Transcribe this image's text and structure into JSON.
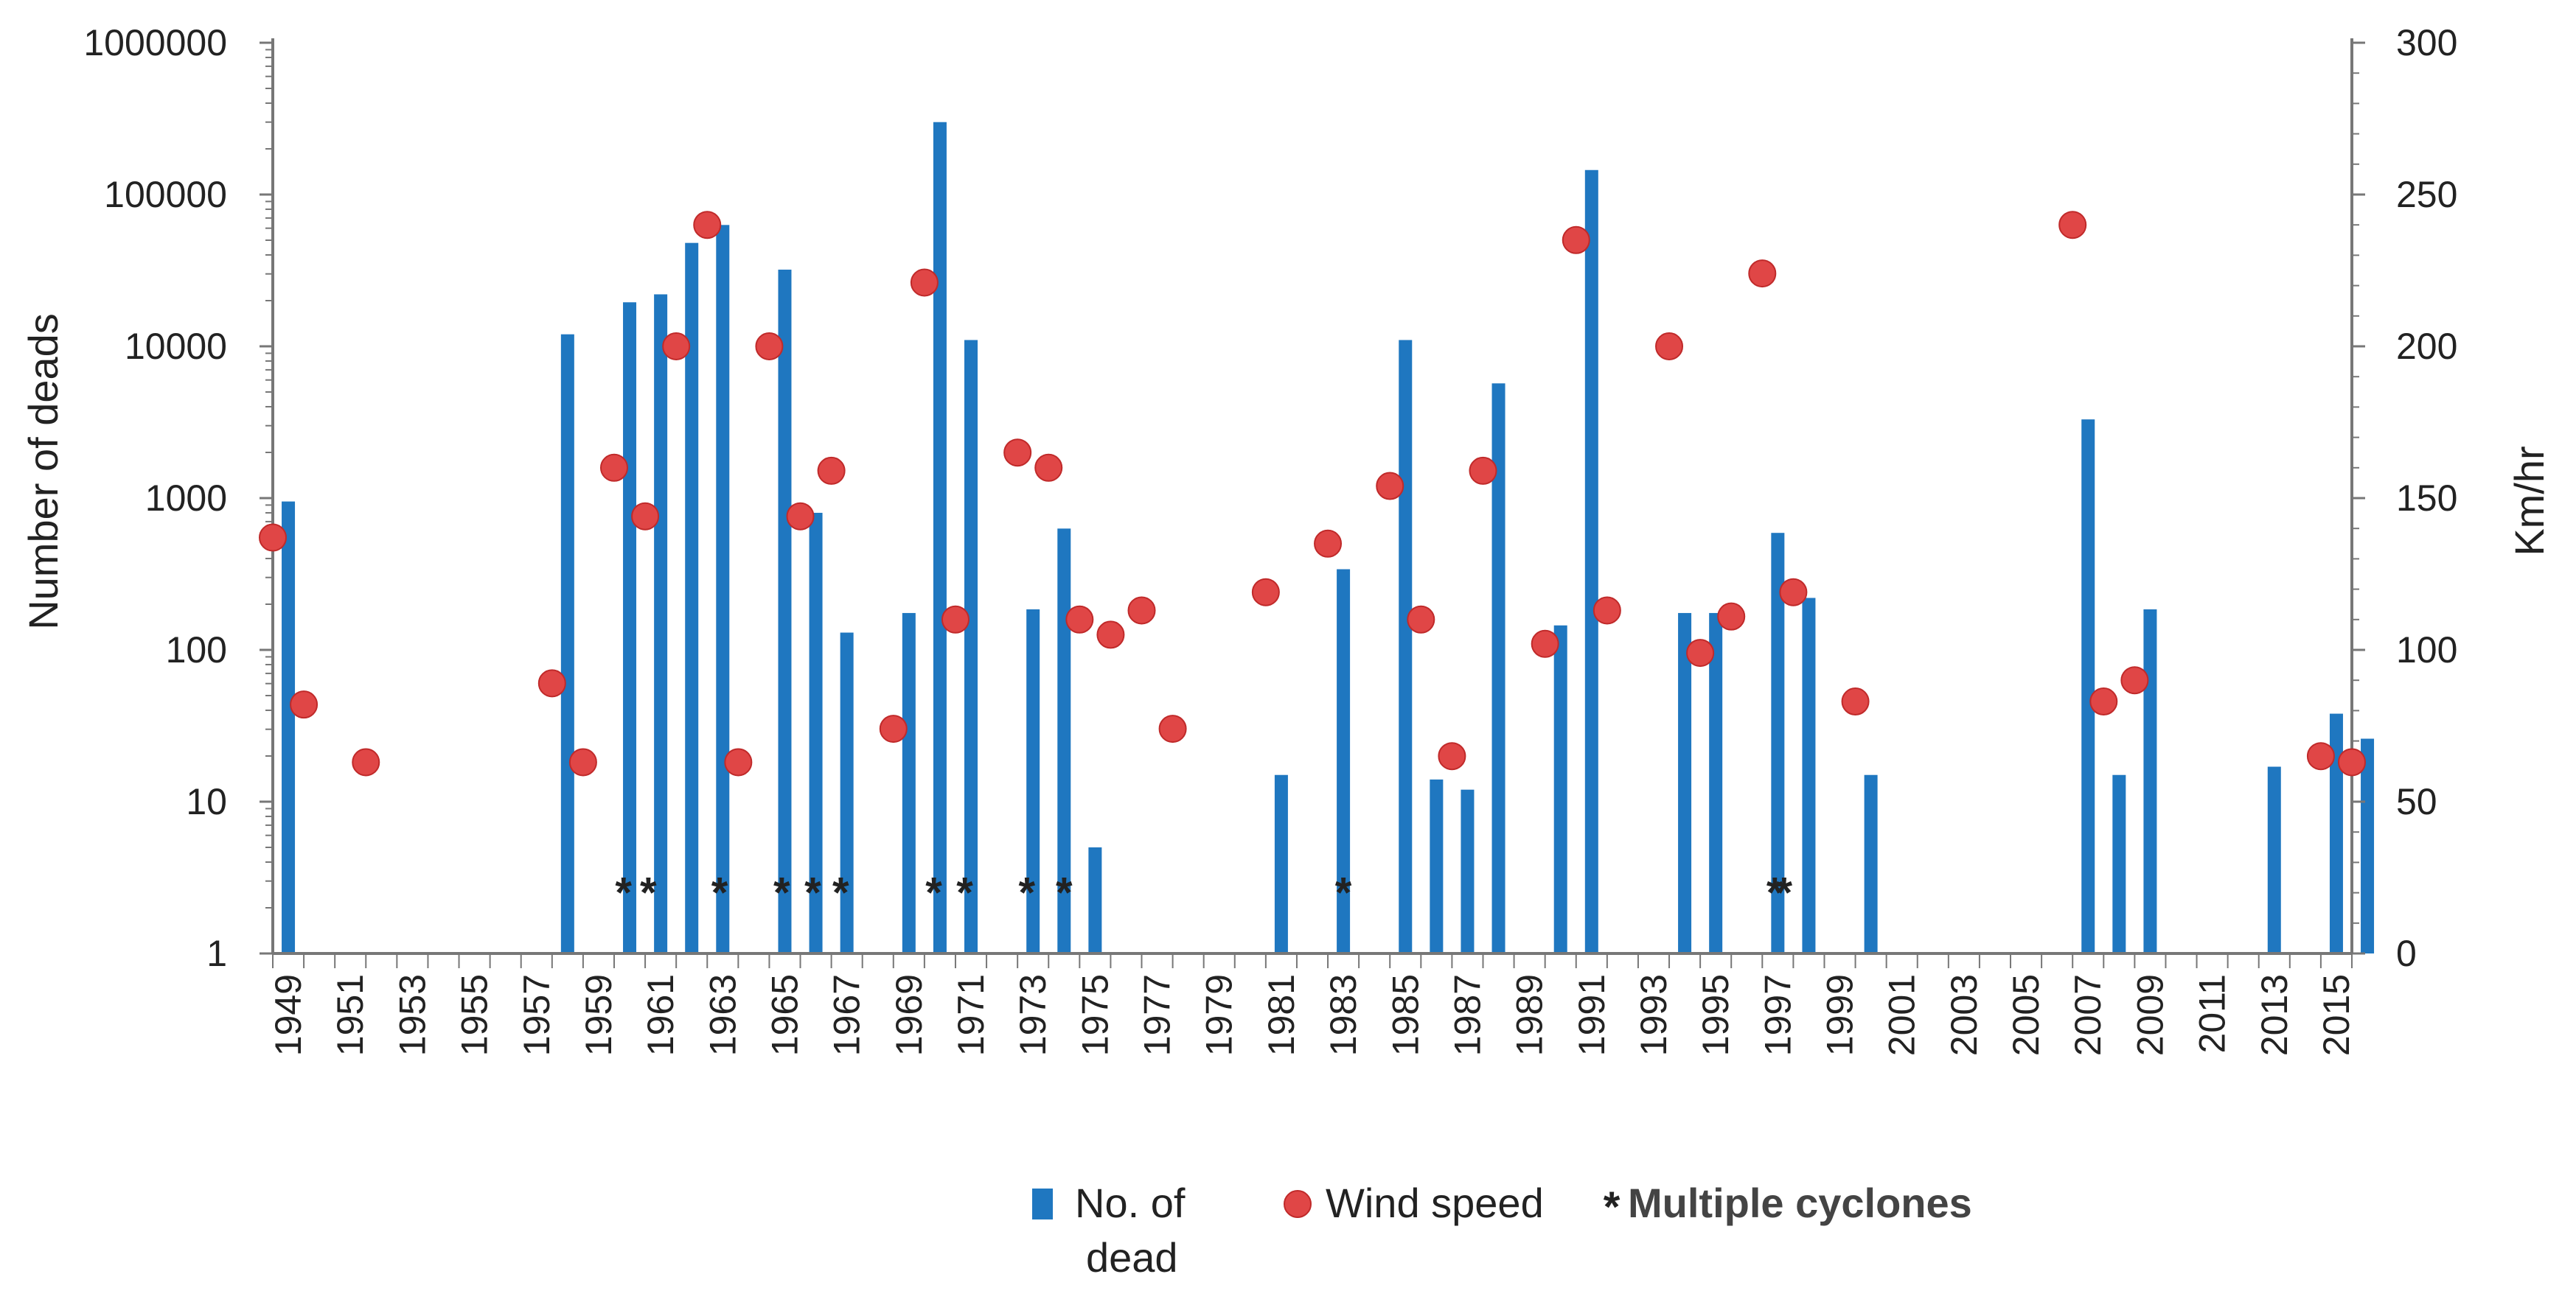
{
  "chart_data": {
    "type": "bar",
    "title": "",
    "xlabel": "",
    "ylabel_left": "Number  of deads",
    "ylabel_right": "Km/hr",
    "y_left_scale": "log",
    "y_left_range": [
      1,
      1000000
    ],
    "y_left_ticks": [
      "1",
      "10",
      "100",
      "1000",
      "10000",
      "100000",
      "1000000"
    ],
    "y_right_range": [
      0,
      300
    ],
    "y_right_ticks": [
      "0",
      "50",
      "100",
      "150",
      "200",
      "250",
      "300"
    ],
    "x_range": [
      1949,
      2016
    ],
    "x_tick_labels": [
      "1949",
      "1951",
      "1953",
      "1955",
      "1957",
      "1959",
      "1961",
      "1963",
      "1965",
      "1967",
      "1969",
      "1971",
      "1973",
      "1975",
      "1977",
      "1979",
      "1981",
      "1983",
      "1985",
      "1987",
      "1989",
      "1991",
      "1993",
      "1995",
      "1997",
      "1999",
      "2001",
      "2003",
      "2005",
      "2007",
      "2009",
      "2011",
      "2013",
      "2015"
    ],
    "grid": false,
    "legend_position": "bottom",
    "series": [
      {
        "name": "No. of dead",
        "legend_label_lines": [
          "No. of",
          "dead"
        ],
        "type": "bar",
        "axis": "left",
        "color": "#1f77c0",
        "points": [
          {
            "x": 1949.5,
            "y": 950
          },
          {
            "x": 1958.5,
            "y": 12000
          },
          {
            "x": 1960.5,
            "y": 19500
          },
          {
            "x": 1961.5,
            "y": 22000
          },
          {
            "x": 1962.5,
            "y": 48000
          },
          {
            "x": 1963.5,
            "y": 63000
          },
          {
            "x": 1965.5,
            "y": 32000
          },
          {
            "x": 1966.5,
            "y": 800
          },
          {
            "x": 1967.5,
            "y": 130
          },
          {
            "x": 1969.5,
            "y": 175
          },
          {
            "x": 1970.5,
            "y": 300000
          },
          {
            "x": 1971.5,
            "y": 11000
          },
          {
            "x": 1973.5,
            "y": 185
          },
          {
            "x": 1974.5,
            "y": 630
          },
          {
            "x": 1975.5,
            "y": 5
          },
          {
            "x": 1981.5,
            "y": 15
          },
          {
            "x": 1983.5,
            "y": 340
          },
          {
            "x": 1985.5,
            "y": 11000
          },
          {
            "x": 1986.5,
            "y": 14
          },
          {
            "x": 1987.5,
            "y": 12
          },
          {
            "x": 1988.5,
            "y": 5700
          },
          {
            "x": 1990.5,
            "y": 145
          },
          {
            "x": 1991.5,
            "y": 145000
          },
          {
            "x": 1994.5,
            "y": 175
          },
          {
            "x": 1995.5,
            "y": 175
          },
          {
            "x": 1997.5,
            "y": 590
          },
          {
            "x": 1998.5,
            "y": 220
          },
          {
            "x": 2000.5,
            "y": 15
          },
          {
            "x": 2007.5,
            "y": 3300
          },
          {
            "x": 2008.5,
            "y": 15
          },
          {
            "x": 2009.5,
            "y": 185
          },
          {
            "x": 2013.5,
            "y": 17
          },
          {
            "x": 2015.5,
            "y": 38
          },
          {
            "x": 2016.5,
            "y": 26
          }
        ]
      },
      {
        "name": "Wind speed",
        "type": "scatter",
        "axis": "right",
        "color": "#e04646",
        "points": [
          {
            "x": 1949,
            "y": 137
          },
          {
            "x": 1950,
            "y": 82
          },
          {
            "x": 1952,
            "y": 63
          },
          {
            "x": 1958,
            "y": 89
          },
          {
            "x": 1959,
            "y": 63
          },
          {
            "x": 1960,
            "y": 160
          },
          {
            "x": 1961,
            "y": 144
          },
          {
            "x": 1962,
            "y": 200
          },
          {
            "x": 1963,
            "y": 240
          },
          {
            "x": 1964,
            "y": 63
          },
          {
            "x": 1965,
            "y": 200
          },
          {
            "x": 1966,
            "y": 144
          },
          {
            "x": 1967,
            "y": 159
          },
          {
            "x": 1969,
            "y": 74
          },
          {
            "x": 1970,
            "y": 221
          },
          {
            "x": 1971,
            "y": 110
          },
          {
            "x": 1973,
            "y": 165
          },
          {
            "x": 1974,
            "y": 160
          },
          {
            "x": 1975,
            "y": 110
          },
          {
            "x": 1976,
            "y": 105
          },
          {
            "x": 1977,
            "y": 113
          },
          {
            "x": 1978,
            "y": 74
          },
          {
            "x": 1981,
            "y": 119
          },
          {
            "x": 1983,
            "y": 135
          },
          {
            "x": 1985,
            "y": 154
          },
          {
            "x": 1986,
            "y": 110
          },
          {
            "x": 1987,
            "y": 65
          },
          {
            "x": 1988,
            "y": 159
          },
          {
            "x": 1990,
            "y": 102
          },
          {
            "x": 1991,
            "y": 235
          },
          {
            "x": 1992,
            "y": 113
          },
          {
            "x": 1994,
            "y": 200
          },
          {
            "x": 1995,
            "y": 99
          },
          {
            "x": 1996,
            "y": 111
          },
          {
            "x": 1997,
            "y": 224
          },
          {
            "x": 1998,
            "y": 119
          },
          {
            "x": 2000,
            "y": 83
          },
          {
            "x": 2007,
            "y": 240
          },
          {
            "x": 2008,
            "y": 83
          },
          {
            "x": 2009,
            "y": 90
          },
          {
            "x": 2015,
            "y": 65
          },
          {
            "x": 2016,
            "y": 63
          }
        ]
      },
      {
        "name": "Multiple cyclones",
        "type": "marker",
        "axis": "right",
        "marker_symbol": "*",
        "color": "#000000",
        "points": [
          {
            "x": 1960.3,
            "y": 20
          },
          {
            "x": 1961.1,
            "y": 20
          },
          {
            "x": 1963.4,
            "y": 20
          },
          {
            "x": 1965.4,
            "y": 20
          },
          {
            "x": 1966.4,
            "y": 20
          },
          {
            "x": 1967.3,
            "y": 20
          },
          {
            "x": 1970.3,
            "y": 20
          },
          {
            "x": 1971.3,
            "y": 20
          },
          {
            "x": 1973.3,
            "y": 20
          },
          {
            "x": 1974.5,
            "y": 20
          },
          {
            "x": 1983.5,
            "y": 20
          },
          {
            "x": 1997.4,
            "y": 20
          },
          {
            "x": 1997.7,
            "y": 20
          }
        ]
      }
    ]
  }
}
